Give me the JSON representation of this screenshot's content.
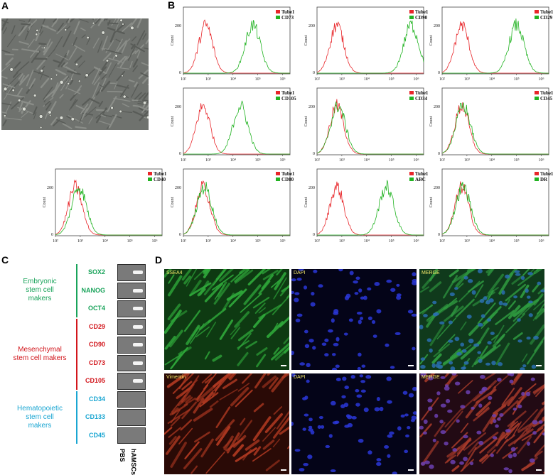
{
  "panels": {
    "A": "A",
    "B": "B",
    "C": "C",
    "D": "D"
  },
  "colors": {
    "isotype": "#e8262a",
    "marker": "#21b321",
    "embryonic": "#19a35a",
    "mesenchymal": "#d2161c",
    "hematopoietic": "#1aa6d2"
  },
  "chart_data": [
    {
      "type": "histogram",
      "ylabel": "Count",
      "yticks": [
        "0",
        "200"
      ],
      "xticks": [
        "10²",
        "10³",
        "10⁴",
        "10⁵",
        "10⁶"
      ],
      "legend": [
        "Tube1",
        "CD73"
      ],
      "isotype_peak_log": 2.9,
      "marker_peak_log": 4.8
    },
    {
      "type": "histogram",
      "ylabel": "Count",
      "yticks": [
        "0",
        "200"
      ],
      "xticks": [
        "10²",
        "10³",
        "10⁴",
        "10⁵",
        "10⁶"
      ],
      "legend": [
        "Tube1",
        "CD90"
      ],
      "isotype_peak_log": 2.8,
      "marker_peak_log": 5.8
    },
    {
      "type": "histogram",
      "ylabel": "Count",
      "yticks": [
        "0",
        "200"
      ],
      "xticks": [
        "10²",
        "10³",
        "10⁴",
        "10⁵",
        "10⁶"
      ],
      "legend": [
        "Tube1",
        "CD29"
      ],
      "isotype_peak_log": 2.8,
      "marker_peak_log": 5.0
    },
    {
      "type": "histogram",
      "ylabel": "Count",
      "yticks": [
        "0",
        "200"
      ],
      "xticks": [
        "10²",
        "10³",
        "10⁴",
        "10⁵",
        "10⁶"
      ],
      "legend": [
        "Tube1",
        "CD105"
      ],
      "isotype_peak_log": 2.8,
      "marker_peak_log": 4.3
    },
    {
      "type": "histogram",
      "ylabel": "Count",
      "yticks": [
        "0",
        "200"
      ],
      "xticks": [
        "10²",
        "10³",
        "10⁴",
        "10⁵",
        "10⁶"
      ],
      "legend": [
        "Tube1",
        "CD34"
      ],
      "isotype_peak_log": 2.8,
      "marker_peak_log": 2.85
    },
    {
      "type": "histogram",
      "ylabel": "Count",
      "yticks": [
        "0",
        "200"
      ],
      "xticks": [
        "10²",
        "10³",
        "10⁴",
        "10⁵",
        "10⁶"
      ],
      "legend": [
        "Tube1",
        "CD45"
      ],
      "isotype_peak_log": 2.8,
      "marker_peak_log": 2.85
    },
    {
      "type": "histogram",
      "ylabel": "Count",
      "yticks": [
        "0",
        "200"
      ],
      "xticks": [
        "10²",
        "10³",
        "10⁴",
        "10⁵",
        "10⁶"
      ],
      "legend": [
        "Tube1",
        "CD40"
      ],
      "isotype_peak_log": 2.8,
      "marker_peak_log": 2.95
    },
    {
      "type": "histogram",
      "ylabel": "Count",
      "yticks": [
        "0",
        "200"
      ],
      "xticks": [
        "10²",
        "10³",
        "10⁴",
        "10⁵",
        "10⁶"
      ],
      "legend": [
        "Tube1",
        "CD80"
      ],
      "isotype_peak_log": 2.8,
      "marker_peak_log": 2.85
    },
    {
      "type": "histogram",
      "ylabel": "Count",
      "yticks": [
        "0",
        "200"
      ],
      "xticks": [
        "10²",
        "10³",
        "10⁴",
        "10⁵",
        "10⁶"
      ],
      "legend": [
        "Tube1",
        "ABC"
      ],
      "isotype_peak_log": 2.8,
      "marker_peak_log": 4.8
    },
    {
      "type": "histogram",
      "ylabel": "Count",
      "yticks": [
        "0",
        "200"
      ],
      "xticks": [
        "10²",
        "10³",
        "10⁴",
        "10⁵",
        "10⁶"
      ],
      "legend": [
        "Tube1",
        "DR"
      ],
      "isotype_peak_log": 2.8,
      "marker_peak_log": 2.85
    }
  ],
  "gel": {
    "groups": [
      {
        "lines": [
          "Embryonic",
          "stem cell",
          "makers"
        ],
        "color": "embryonic"
      },
      {
        "lines": [
          "Mesenchymal",
          "stem cell makers"
        ],
        "color": "mesenchymal"
      },
      {
        "lines": [
          "Hematopoietic",
          "stem cell",
          "makers"
        ],
        "color": "hematopoietic"
      }
    ],
    "genes": [
      {
        "name": "SOX2",
        "group": 0,
        "pbs": 0,
        "hmsc": 1
      },
      {
        "name": "NANOG",
        "group": 0,
        "pbs": 0,
        "hmsc": 1
      },
      {
        "name": "OCT4",
        "group": 0,
        "pbs": 0,
        "hmsc": 1
      },
      {
        "name": "CD29",
        "group": 1,
        "pbs": 0,
        "hmsc": 1
      },
      {
        "name": "CD90",
        "group": 1,
        "pbs": 0,
        "hmsc": 1
      },
      {
        "name": "CD73",
        "group": 1,
        "pbs": 0,
        "hmsc": 1
      },
      {
        "name": "CD105",
        "group": 1,
        "pbs": 0,
        "hmsc": 1
      },
      {
        "name": "CD34",
        "group": 2,
        "pbs": 0,
        "hmsc": 0
      },
      {
        "name": "CD133",
        "group": 2,
        "pbs": 0,
        "hmsc": 0
      },
      {
        "name": "CD45",
        "group": 2,
        "pbs": 0,
        "hmsc": 0
      }
    ],
    "lanes": [
      "PBS",
      "hAMSCs"
    ]
  },
  "fluorescence": [
    {
      "label": "SSEA4",
      "channel": "green"
    },
    {
      "label": "DAPI",
      "channel": "blue"
    },
    {
      "label": "MERGE",
      "channel": "merge-green"
    },
    {
      "label": "Vimentin",
      "channel": "red"
    },
    {
      "label": "DAPI",
      "channel": "blue"
    },
    {
      "label": "MERGE",
      "channel": "merge-red"
    }
  ]
}
